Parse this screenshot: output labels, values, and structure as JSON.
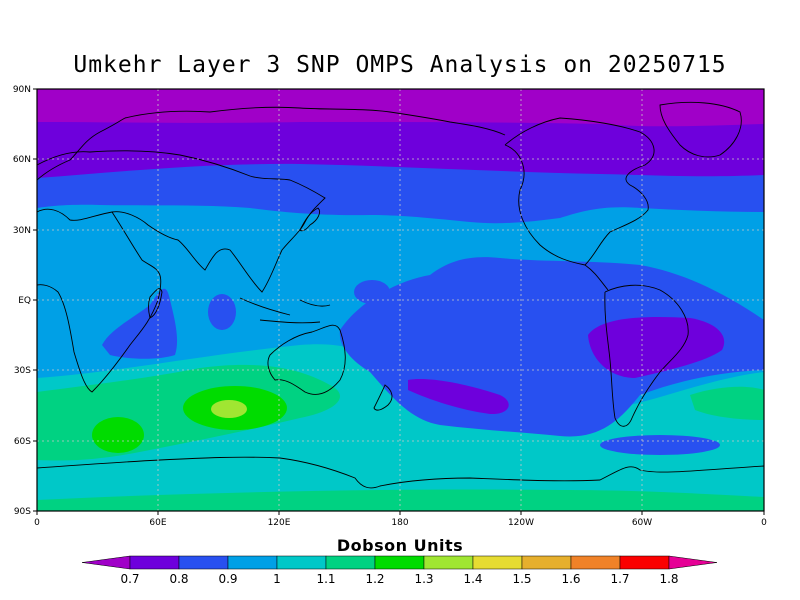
{
  "title": "Umkehr Layer 3 SNP OMPS Analysis on 20250715",
  "lat_labels": [
    "90N",
    "60N",
    "30N",
    "EQ",
    "30S",
    "60S",
    "90S"
  ],
  "lon_labels": [
    "0",
    "60E",
    "120E",
    "180",
    "120W",
    "60W",
    "0"
  ],
  "colorbar": {
    "title": "Dobson Units",
    "labels": [
      "0.7",
      "0.8",
      "0.9",
      "1",
      "1.1",
      "1.2",
      "1.3",
      "1.4",
      "1.5",
      "1.6",
      "1.7",
      "1.8"
    ],
    "colors": [
      "#a000c8",
      "#6e00dc",
      "#2850f0",
      "#00a0e6",
      "#00c8c8",
      "#00d282",
      "#00dc00",
      "#a0e632",
      "#e6dc32",
      "#e6af2d",
      "#f08228",
      "#fa0000",
      "#e60096"
    ]
  },
  "legend": {
    "under_color": "#a000c8",
    "over_color": "#e60096"
  }
}
